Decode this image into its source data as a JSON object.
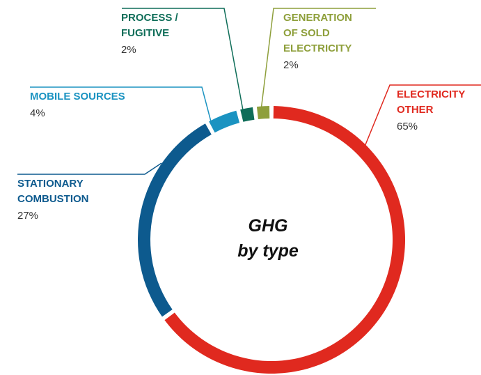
{
  "chart_data": {
    "type": "donut",
    "title": [
      "GHG",
      "by type"
    ],
    "categories": [
      [
        "ELECTRICITY",
        "OTHER"
      ],
      [
        "STATIONARY",
        "COMBUSTION"
      ],
      [
        "MOBILE SOURCES"
      ],
      [
        "PROCESS /",
        "FUGITIVE"
      ],
      [
        "GENERATION",
        "OF SOLD",
        "ELECTRICITY"
      ]
    ],
    "values": [
      65,
      27,
      4,
      2,
      2
    ],
    "value_labels": [
      "65%",
      "27%",
      "4%",
      "2%",
      "2%"
    ],
    "colors": [
      "#e0291f",
      "#0d5a8e",
      "#1b93c1",
      "#0e6d58",
      "#8e9f3b"
    ]
  }
}
